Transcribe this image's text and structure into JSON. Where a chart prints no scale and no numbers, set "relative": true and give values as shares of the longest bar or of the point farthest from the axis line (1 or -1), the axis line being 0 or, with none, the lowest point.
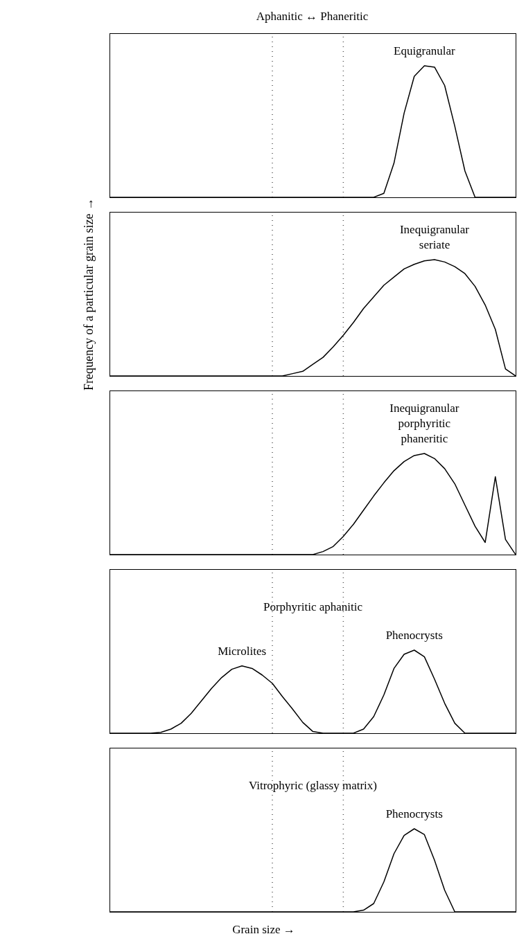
{
  "chart_data": [
    {
      "type": "line",
      "relative": true,
      "title": "Aphanitic ↔ Phaneritic",
      "tick_labels": false,
      "categories": [
        null,
        null,
        null,
        null,
        null,
        null,
        null,
        null,
        null,
        null,
        null,
        null,
        null,
        null,
        null,
        null,
        null,
        null,
        null,
        null,
        null,
        null,
        null,
        null,
        null,
        null,
        null,
        null,
        null,
        null,
        null,
        null,
        null,
        null,
        null,
        null,
        null,
        null,
        null,
        null,
        null
      ],
      "series": [
        {
          "color": "#000000",
          "values": [
            0,
            0,
            0,
            0,
            0,
            0,
            0,
            0,
            0,
            0,
            0,
            0,
            0,
            0,
            0,
            0,
            0,
            0,
            0,
            0,
            0,
            0,
            0,
            0,
            0,
            0,
            0,
            0.03,
            0.26,
            0.64,
            0.92,
            1,
            0.99,
            0.85,
            0.54,
            0.2,
            0,
            0,
            0,
            0,
            0
          ]
        }
      ],
      "annotations": [
        "Equigranular"
      ]
    },
    {
      "type": "line",
      "relative": true,
      "ylabel": "Frequency of a particular grain size →",
      "tick_labels": false,
      "categories": [
        null,
        null,
        null,
        null,
        null,
        null,
        null,
        null,
        null,
        null,
        null,
        null,
        null,
        null,
        null,
        null,
        null,
        null,
        null,
        null,
        null,
        null,
        null,
        null,
        null,
        null,
        null,
        null,
        null,
        null,
        null,
        null,
        null,
        null,
        null,
        null,
        null,
        null,
        null,
        null,
        null
      ],
      "series": [
        {
          "color": "#000000",
          "values": [
            0,
            0,
            0,
            0,
            0,
            0,
            0,
            0,
            0,
            0,
            0,
            0,
            0,
            0,
            0,
            0,
            0,
            0,
            0.02,
            0.04,
            0.1,
            0.16,
            0.25,
            0.35,
            0.46,
            0.58,
            0.68,
            0.78,
            0.85,
            0.92,
            0.96,
            0.99,
            1,
            0.98,
            0.94,
            0.88,
            0.77,
            0.61,
            0.4,
            0.06,
            0
          ]
        }
      ],
      "annotations": [
        "Inequigranular\nseriate"
      ]
    },
    {
      "type": "line",
      "relative": true,
      "tick_labels": false,
      "categories": [
        null,
        null,
        null,
        null,
        null,
        null,
        null,
        null,
        null,
        null,
        null,
        null,
        null,
        null,
        null,
        null,
        null,
        null,
        null,
        null,
        null,
        null,
        null,
        null,
        null,
        null,
        null,
        null,
        null,
        null,
        null,
        null,
        null,
        null,
        null,
        null,
        null,
        null,
        null,
        null,
        null
      ],
      "series": [
        {
          "color": "#000000",
          "values": [
            0,
            0,
            0,
            0,
            0,
            0,
            0,
            0,
            0,
            0,
            0,
            0,
            0,
            0,
            0,
            0,
            0,
            0,
            0,
            0,
            0,
            0.03,
            0.08,
            0.18,
            0.3,
            0.44,
            0.58,
            0.71,
            0.83,
            0.92,
            0.98,
            1,
            0.95,
            0.85,
            0.7,
            0.49,
            0.28,
            0.12,
            0.77,
            0.15,
            0
          ]
        }
      ],
      "annotations": [
        "Inequigranular\nporphyritic\nphaneritic"
      ]
    },
    {
      "type": "line",
      "relative": true,
      "title": "Porphyritic aphanitic",
      "tick_labels": false,
      "categories": [
        null,
        null,
        null,
        null,
        null,
        null,
        null,
        null,
        null,
        null,
        null,
        null,
        null,
        null,
        null,
        null,
        null,
        null,
        null,
        null,
        null,
        null,
        null,
        null,
        null,
        null,
        null,
        null,
        null,
        null,
        null,
        null,
        null,
        null,
        null,
        null,
        null,
        null,
        null,
        null,
        null
      ],
      "series": [
        {
          "color": "#000000",
          "values": [
            0,
            0,
            0,
            0,
            0,
            0.01,
            0.05,
            0.12,
            0.24,
            0.39,
            0.54,
            0.67,
            0.77,
            0.81,
            0.78,
            0.7,
            0.6,
            0.44,
            0.29,
            0.13,
            0.02,
            0,
            0,
            0,
            0,
            0.05,
            0.2,
            0.46,
            0.78,
            0.95,
            1,
            0.92,
            0.65,
            0.36,
            0.12,
            0,
            0,
            0,
            0,
            0,
            0
          ]
        }
      ],
      "annotations": [
        "Microlites",
        "Phenocrysts"
      ]
    },
    {
      "type": "line",
      "relative": true,
      "title": "Vitrophyric (glassy matrix)",
      "xlabel": "Grain size →",
      "tick_labels": false,
      "categories": [
        null,
        null,
        null,
        null,
        null,
        null,
        null,
        null,
        null,
        null,
        null,
        null,
        null,
        null,
        null,
        null,
        null,
        null,
        null,
        null,
        null,
        null,
        null,
        null,
        null,
        null,
        null,
        null,
        null,
        null,
        null,
        null,
        null,
        null,
        null,
        null,
        null,
        null,
        null,
        null,
        null
      ],
      "series": [
        {
          "color": "#000000",
          "values": [
            0,
            0,
            0,
            0,
            0,
            0,
            0,
            0,
            0,
            0,
            0,
            0,
            0,
            0,
            0,
            0,
            0,
            0,
            0,
            0,
            0,
            0,
            0,
            0,
            0,
            0.02,
            0.1,
            0.36,
            0.7,
            0.92,
            1,
            0.93,
            0.62,
            0.26,
            0,
            0,
            0,
            0,
            0,
            0,
            0
          ]
        }
      ],
      "annotations": [
        "Phenocrysts"
      ]
    }
  ]
}
